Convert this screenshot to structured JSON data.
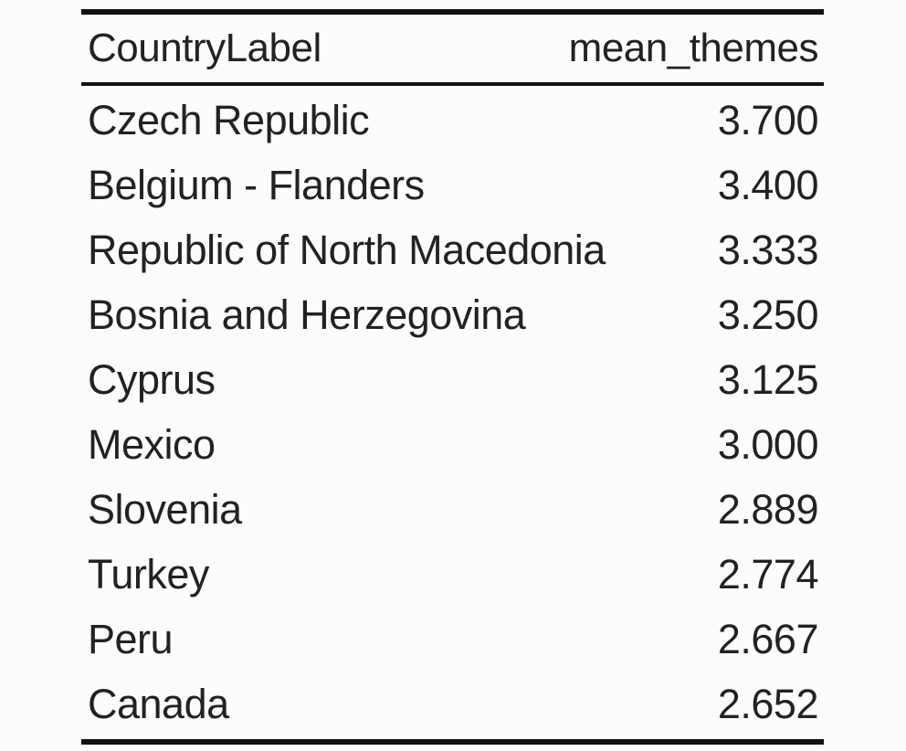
{
  "chart_data": {
    "type": "table",
    "columns": [
      "CountryLabel",
      "mean_themes"
    ],
    "rows": [
      {
        "country": "Czech Republic",
        "mean_themes": "3.700"
      },
      {
        "country": "Belgium - Flanders",
        "mean_themes": "3.400"
      },
      {
        "country": "Republic of North Macedonia",
        "mean_themes": "3.333"
      },
      {
        "country": "Bosnia and Herzegovina",
        "mean_themes": "3.250"
      },
      {
        "country": "Cyprus",
        "mean_themes": "3.125"
      },
      {
        "country": "Mexico",
        "mean_themes": "3.000"
      },
      {
        "country": "Slovenia",
        "mean_themes": "2.889"
      },
      {
        "country": "Turkey",
        "mean_themes": "2.774"
      },
      {
        "country": "Peru",
        "mean_themes": "2.667"
      },
      {
        "country": "Canada",
        "mean_themes": "2.652"
      }
    ]
  }
}
